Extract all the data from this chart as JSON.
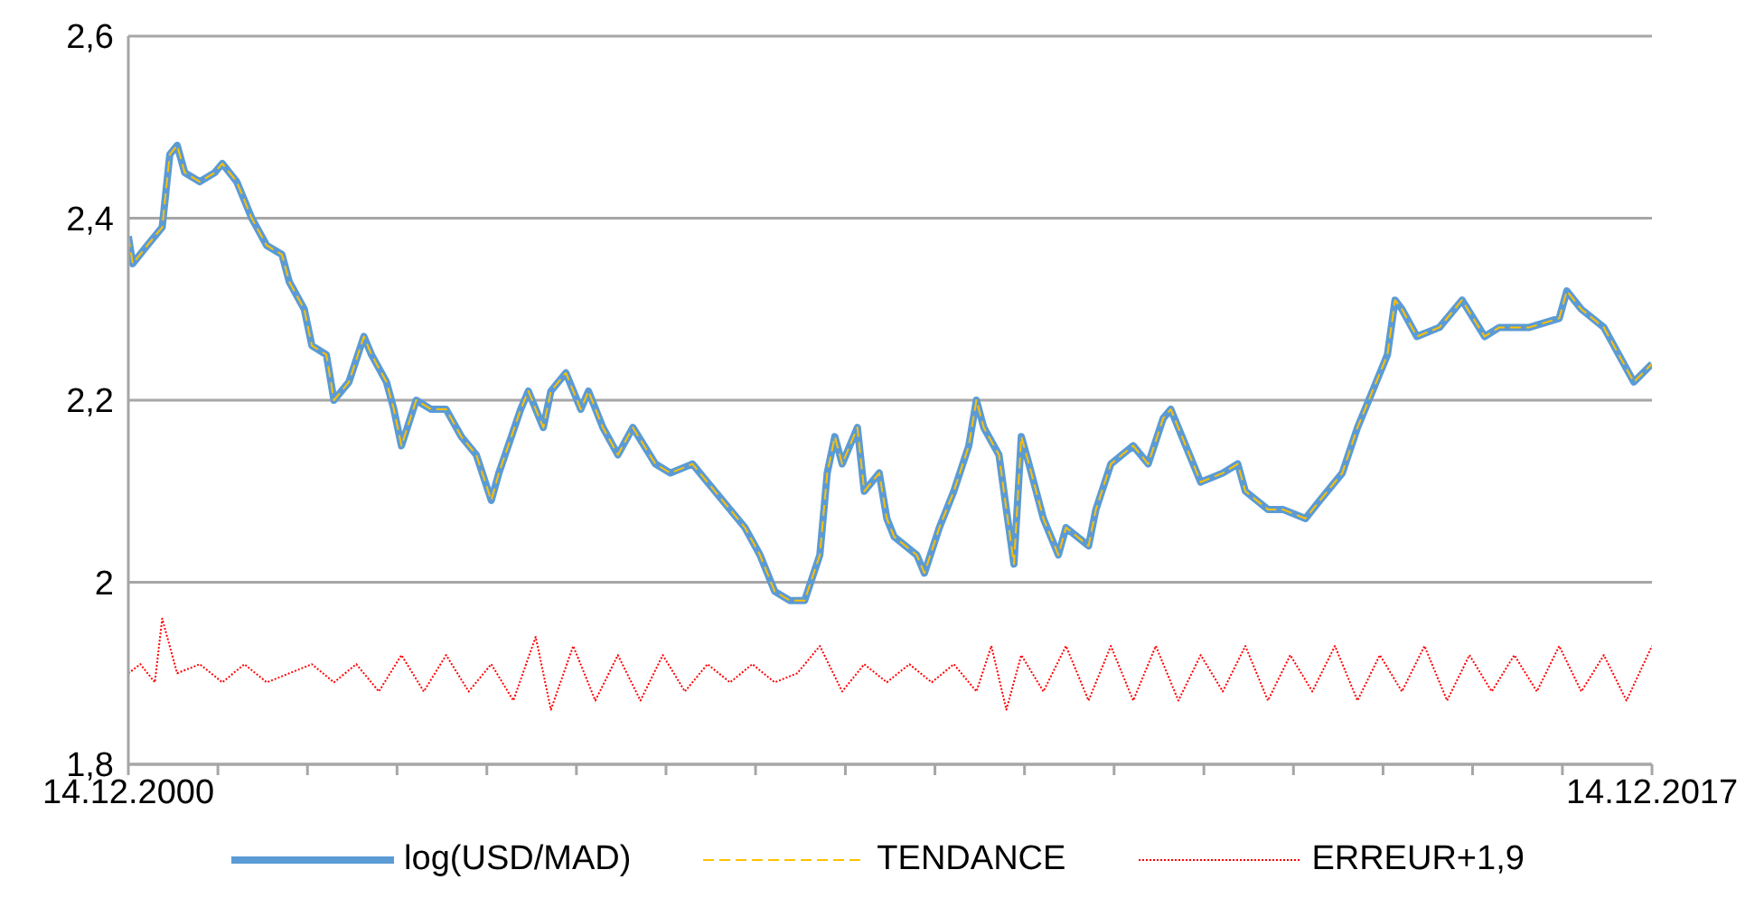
{
  "chart_data": {
    "type": "line",
    "xlim": [
      "2000-12-14",
      "2017-12-14"
    ],
    "xticks": [
      {
        "value": "2000-12-14",
        "label": "14.12.2000"
      },
      {
        "value": "2001-12-14",
        "label": null
      },
      {
        "value": "2002-12-14",
        "label": null
      },
      {
        "value": "2003-12-14",
        "label": null
      },
      {
        "value": "2004-12-14",
        "label": null
      },
      {
        "value": "2005-12-14",
        "label": null
      },
      {
        "value": "2006-12-14",
        "label": null
      },
      {
        "value": "2007-12-14",
        "label": null
      },
      {
        "value": "2008-12-14",
        "label": null
      },
      {
        "value": "2009-12-14",
        "label": null
      },
      {
        "value": "2010-12-14",
        "label": null
      },
      {
        "value": "2011-12-14",
        "label": null
      },
      {
        "value": "2012-12-14",
        "label": null
      },
      {
        "value": "2013-12-14",
        "label": null
      },
      {
        "value": "2014-12-14",
        "label": null
      },
      {
        "value": "2015-12-14",
        "label": null
      },
      {
        "value": "2016-12-14",
        "label": null
      },
      {
        "value": "2017-12-14",
        "label": "14.12.2017"
      }
    ],
    "ylim": [
      1.8,
      2.6
    ],
    "yticks": [
      {
        "value": 1.8,
        "label": "1,8"
      },
      2,
      {
        "value": 2.2,
        "label": "2,2"
      },
      {
        "value": 2.4,
        "label": "2,4"
      },
      {
        "value": 2.6,
        "label": "2,6"
      }
    ],
    "grid": "y",
    "legend": "bottom",
    "marker": "none",
    "series": [
      {
        "name": "log(USD/MAD)",
        "color": "#5b9bd5",
        "line_style": "solid",
        "x": [
          "2000-12-14",
          "2001-01",
          "2001-03",
          "2001-05",
          "2001-06",
          "2001-07",
          "2001-08",
          "2001-10",
          "2001-12",
          "2002-01",
          "2002-03",
          "2002-05",
          "2002-07",
          "2002-09",
          "2002-10",
          "2002-12",
          "2003-01",
          "2003-03",
          "2003-04",
          "2003-06",
          "2003-08",
          "2003-09",
          "2003-11",
          "2003-12",
          "2004-01",
          "2004-03",
          "2004-05",
          "2004-07",
          "2004-09",
          "2004-11",
          "2005-01",
          "2005-02",
          "2005-05",
          "2005-06",
          "2005-08",
          "2005-09",
          "2005-11",
          "2006-01",
          "2006-02",
          "2006-04",
          "2006-06",
          "2006-08",
          "2006-11",
          "2007-01",
          "2007-04",
          "2007-06",
          "2007-08",
          "2007-11",
          "2008-01",
          "2008-03",
          "2008-05",
          "2008-06",
          "2008-07",
          "2008-09",
          "2008-10",
          "2008-11",
          "2008-12",
          "2009-02",
          "2009-03",
          "2009-05",
          "2009-06",
          "2009-07",
          "2009-10",
          "2009-11",
          "2010-01",
          "2010-03",
          "2010-05",
          "2010-06",
          "2010-07",
          "2010-09",
          "2010-10",
          "2010-11",
          "2010-12",
          "2011-01",
          "2011-03",
          "2011-05",
          "2011-06",
          "2011-09",
          "2011-10",
          "2011-12",
          "2012-03",
          "2012-05",
          "2012-07",
          "2012-08",
          "2012-10",
          "2012-12",
          "2013-03",
          "2013-05",
          "2013-06",
          "2013-09",
          "2013-11",
          "2014-02",
          "2014-04",
          "2014-07",
          "2014-09",
          "2014-11",
          "2015-01",
          "2015-02",
          "2015-03",
          "2015-05",
          "2015-08",
          "2015-11",
          "2016-02",
          "2016-04",
          "2016-08",
          "2016-12",
          "2017-01",
          "2017-03",
          "2017-06",
          "2017-08",
          "2017-10",
          "2017-12-14"
        ],
        "values": [
          2.38,
          2.35,
          2.37,
          2.39,
          2.47,
          2.48,
          2.45,
          2.44,
          2.45,
          2.46,
          2.44,
          2.4,
          2.37,
          2.36,
          2.33,
          2.3,
          2.26,
          2.25,
          2.2,
          2.22,
          2.27,
          2.25,
          2.22,
          2.19,
          2.15,
          2.2,
          2.19,
          2.19,
          2.16,
          2.14,
          2.09,
          2.12,
          2.19,
          2.21,
          2.17,
          2.21,
          2.23,
          2.19,
          2.21,
          2.17,
          2.14,
          2.17,
          2.13,
          2.12,
          2.13,
          2.11,
          2.09,
          2.06,
          2.03,
          1.99,
          1.98,
          1.98,
          1.98,
          2.03,
          2.12,
          2.16,
          2.13,
          2.17,
          2.1,
          2.12,
          2.07,
          2.05,
          2.03,
          2.01,
          2.06,
          2.1,
          2.15,
          2.2,
          2.17,
          2.14,
          2.08,
          2.02,
          2.16,
          2.13,
          2.07,
          2.03,
          2.06,
          2.04,
          2.08,
          2.13,
          2.15,
          2.13,
          2.18,
          2.19,
          2.15,
          2.11,
          2.12,
          2.13,
          2.1,
          2.08,
          2.08,
          2.07,
          2.09,
          2.12,
          2.17,
          2.21,
          2.25,
          2.31,
          2.3,
          2.27,
          2.28,
          2.31,
          2.27,
          2.28,
          2.28,
          2.29,
          2.32,
          2.3,
          2.28,
          2.25,
          2.22,
          2.24
        ]
      },
      {
        "name": "TENDANCE",
        "color": "#ffc000",
        "line_style": "dashed",
        "x": [
          "2000-12-14",
          "2001-01",
          "2001-03",
          "2001-05",
          "2001-06",
          "2001-07",
          "2001-08",
          "2001-10",
          "2001-12",
          "2002-01",
          "2002-03",
          "2002-05",
          "2002-07",
          "2002-09",
          "2002-10",
          "2002-12",
          "2003-01",
          "2003-03",
          "2003-04",
          "2003-06",
          "2003-08",
          "2003-09",
          "2003-11",
          "2003-12",
          "2004-01",
          "2004-03",
          "2004-05",
          "2004-07",
          "2004-09",
          "2004-11",
          "2005-01",
          "2005-02",
          "2005-05",
          "2005-06",
          "2005-08",
          "2005-09",
          "2005-11",
          "2006-01",
          "2006-02",
          "2006-04",
          "2006-06",
          "2006-08",
          "2006-11",
          "2007-01",
          "2007-04",
          "2007-06",
          "2007-08",
          "2007-11",
          "2008-01",
          "2008-03",
          "2008-05",
          "2008-06",
          "2008-07",
          "2008-09",
          "2008-10",
          "2008-11",
          "2008-12",
          "2009-02",
          "2009-03",
          "2009-05",
          "2009-06",
          "2009-07",
          "2009-10",
          "2009-11",
          "2010-01",
          "2010-03",
          "2010-05",
          "2010-06",
          "2010-07",
          "2010-09",
          "2010-10",
          "2010-11",
          "2010-12",
          "2011-01",
          "2011-03",
          "2011-05",
          "2011-06",
          "2011-09",
          "2011-10",
          "2011-12",
          "2012-03",
          "2012-05",
          "2012-07",
          "2012-08",
          "2012-10",
          "2012-12",
          "2013-03",
          "2013-05",
          "2013-06",
          "2013-09",
          "2013-11",
          "2014-02",
          "2014-04",
          "2014-07",
          "2014-09",
          "2014-11",
          "2015-01",
          "2015-02",
          "2015-03",
          "2015-05",
          "2015-08",
          "2015-11",
          "2016-02",
          "2016-04",
          "2016-08",
          "2016-12",
          "2017-01",
          "2017-03",
          "2017-06",
          "2017-08",
          "2017-10",
          "2017-12-14"
        ],
        "values": [
          2.38,
          2.35,
          2.37,
          2.39,
          2.47,
          2.48,
          2.45,
          2.44,
          2.45,
          2.46,
          2.44,
          2.4,
          2.37,
          2.36,
          2.33,
          2.3,
          2.26,
          2.25,
          2.2,
          2.22,
          2.27,
          2.25,
          2.22,
          2.19,
          2.15,
          2.2,
          2.19,
          2.19,
          2.16,
          2.14,
          2.09,
          2.12,
          2.19,
          2.21,
          2.17,
          2.21,
          2.23,
          2.19,
          2.21,
          2.17,
          2.14,
          2.17,
          2.13,
          2.12,
          2.13,
          2.11,
          2.09,
          2.06,
          2.03,
          1.99,
          1.98,
          1.98,
          1.98,
          2.03,
          2.12,
          2.16,
          2.13,
          2.17,
          2.1,
          2.12,
          2.07,
          2.05,
          2.03,
          2.01,
          2.06,
          2.1,
          2.15,
          2.2,
          2.17,
          2.14,
          2.08,
          2.02,
          2.16,
          2.13,
          2.07,
          2.03,
          2.06,
          2.04,
          2.08,
          2.13,
          2.15,
          2.13,
          2.18,
          2.19,
          2.15,
          2.11,
          2.12,
          2.13,
          2.1,
          2.08,
          2.08,
          2.07,
          2.09,
          2.12,
          2.17,
          2.21,
          2.25,
          2.31,
          2.3,
          2.27,
          2.28,
          2.31,
          2.27,
          2.28,
          2.28,
          2.29,
          2.32,
          2.3,
          2.28,
          2.25,
          2.22,
          2.24
        ]
      },
      {
        "name": "ERREUR+1,9",
        "color": "#ff0000",
        "line_style": "dotted",
        "x": [
          "2000-12-14",
          "2001-02",
          "2001-04",
          "2001-05",
          "2001-07",
          "2001-10",
          "2002-01",
          "2002-04",
          "2002-07",
          "2002-10",
          "2003-01",
          "2003-04",
          "2003-07",
          "2003-10",
          "2004-01",
          "2004-04",
          "2004-07",
          "2004-10",
          "2005-01",
          "2005-04",
          "2005-07",
          "2005-09",
          "2005-12",
          "2006-03",
          "2006-06",
          "2006-09",
          "2006-12",
          "2007-03",
          "2007-06",
          "2007-09",
          "2007-12",
          "2008-03",
          "2008-06",
          "2008-09",
          "2008-12",
          "2009-03",
          "2009-06",
          "2009-09",
          "2009-12",
          "2010-03",
          "2010-06",
          "2010-08",
          "2010-10",
          "2010-12",
          "2011-03",
          "2011-06",
          "2011-09",
          "2011-12",
          "2012-03",
          "2012-06",
          "2012-09",
          "2012-12",
          "2013-03",
          "2013-06",
          "2013-09",
          "2013-12",
          "2014-03",
          "2014-06",
          "2014-09",
          "2014-12",
          "2015-03",
          "2015-06",
          "2015-09",
          "2015-12",
          "2016-03",
          "2016-06",
          "2016-09",
          "2016-12",
          "2017-03",
          "2017-06",
          "2017-09",
          "2017-12-14"
        ],
        "values": [
          1.9,
          1.91,
          1.89,
          1.96,
          1.9,
          1.91,
          1.89,
          1.91,
          1.89,
          1.9,
          1.91,
          1.89,
          1.91,
          1.88,
          1.92,
          1.88,
          1.92,
          1.88,
          1.91,
          1.87,
          1.94,
          1.86,
          1.93,
          1.87,
          1.92,
          1.87,
          1.92,
          1.88,
          1.91,
          1.89,
          1.91,
          1.89,
          1.9,
          1.93,
          1.88,
          1.91,
          1.89,
          1.91,
          1.89,
          1.91,
          1.88,
          1.93,
          1.86,
          1.92,
          1.88,
          1.93,
          1.87,
          1.93,
          1.87,
          1.93,
          1.87,
          1.92,
          1.88,
          1.93,
          1.87,
          1.92,
          1.88,
          1.93,
          1.87,
          1.92,
          1.88,
          1.93,
          1.87,
          1.92,
          1.88,
          1.92,
          1.88,
          1.93,
          1.88,
          1.92,
          1.87,
          1.93
        ]
      }
    ]
  }
}
